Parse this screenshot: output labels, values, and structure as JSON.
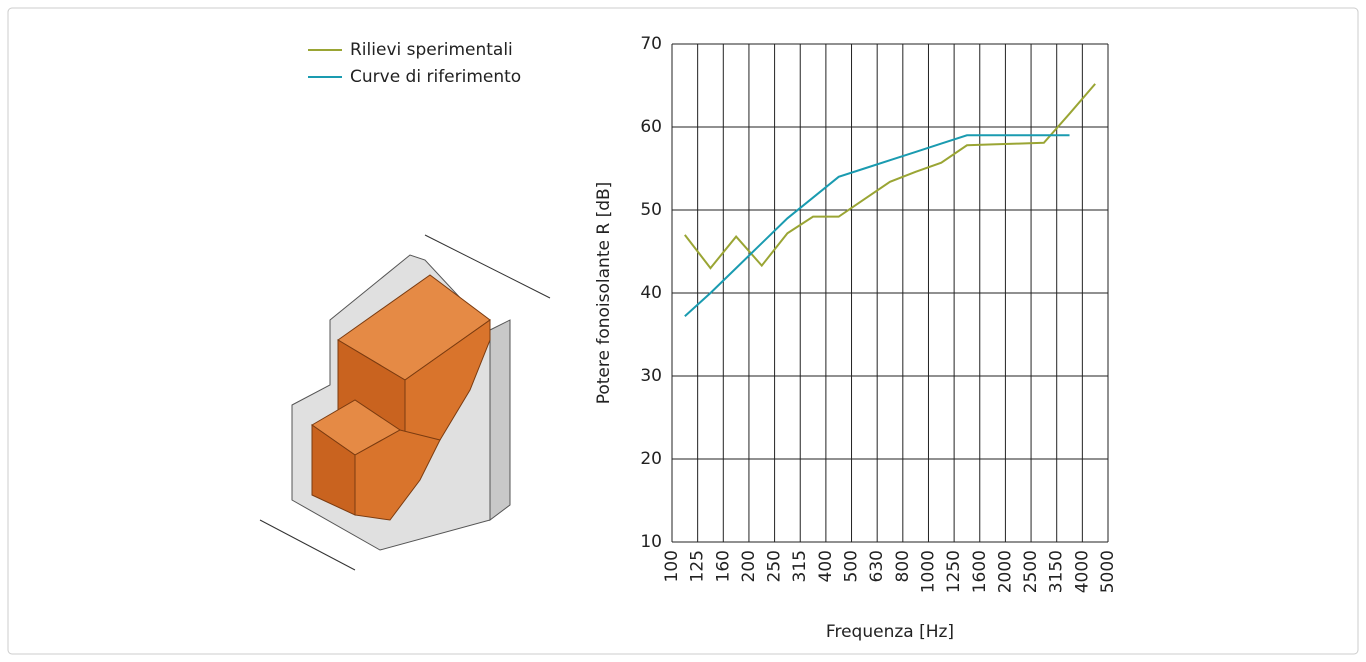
{
  "chart_data": {
    "type": "line",
    "y_label": "Potere fonoisolante R [dB]",
    "x_label": "Frequenza [Hz]",
    "categories": [
      "100",
      "125",
      "160",
      "200",
      "250",
      "315",
      "400",
      "500",
      "630",
      "800",
      "1000",
      "1250",
      "1600",
      "2000",
      "2500",
      "3150",
      "4000",
      "5000"
    ],
    "series": [
      {
        "name": "Rilievi sperimentali",
        "color": "#9aa534",
        "values": [
          47,
          43,
          46.8,
          43.3,
          47.2,
          49.2,
          49.2,
          51.3,
          53.4,
          54.6,
          55.7,
          57.8,
          57.9,
          58,
          58.1,
          61.6,
          65.2,
          null
        ]
      },
      {
        "name": "Curve di riferimento",
        "color": "#1a9bb0",
        "values": [
          37.2,
          40,
          43,
          46,
          49,
          51.5,
          54,
          55,
          56,
          57,
          58,
          59,
          59,
          59,
          59,
          59,
          null,
          null
        ]
      }
    ],
    "ylim": [
      10,
      70
    ],
    "yticks": [
      10,
      20,
      30,
      40,
      50,
      60,
      70
    ],
    "grid": true,
    "legend": "top-left"
  }
}
